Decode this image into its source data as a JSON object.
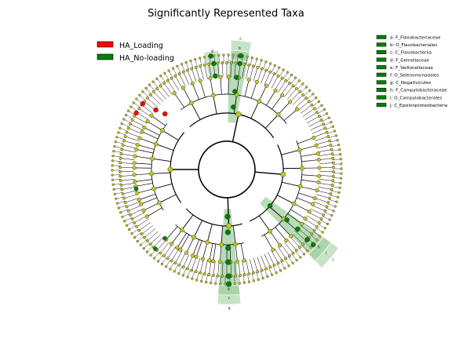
{
  "title": "Significantly Represented Taxa",
  "legend": [
    {
      "label": "HA_Loading",
      "color": "#ff0000"
    },
    {
      "label": "HA_No-loading",
      "color": "#008000"
    }
  ],
  "clade_key": [
    {
      "text": "a: F_Flavobacteriaceae"
    },
    {
      "text": "b: O_Flavobacteriales"
    },
    {
      "text": "c: C_Flavobacteriia"
    },
    {
      "text": "d: F_Gemellaceae"
    },
    {
      "text": "e: F_Veillonellaceae"
    },
    {
      "text": "f: O_Selenomonadales"
    },
    {
      "text": "g: C_Negativicutes"
    },
    {
      "text": "h: F_Campylobacteraceae"
    },
    {
      "text": "i: O_Campylobacterales"
    },
    {
      "text": "j: C_Epsilonproteobacteria"
    }
  ],
  "clade_letters": [
    "a",
    "b",
    "c",
    "d",
    "e",
    "f",
    "g",
    "h",
    "i",
    "j"
  ],
  "colors": {
    "background": "#ffffff",
    "node_default": "#c8c818",
    "node_loading": "#ff0000",
    "node_noloading": "#008000",
    "highlight": "#008000",
    "branch": "#000000"
  }
}
